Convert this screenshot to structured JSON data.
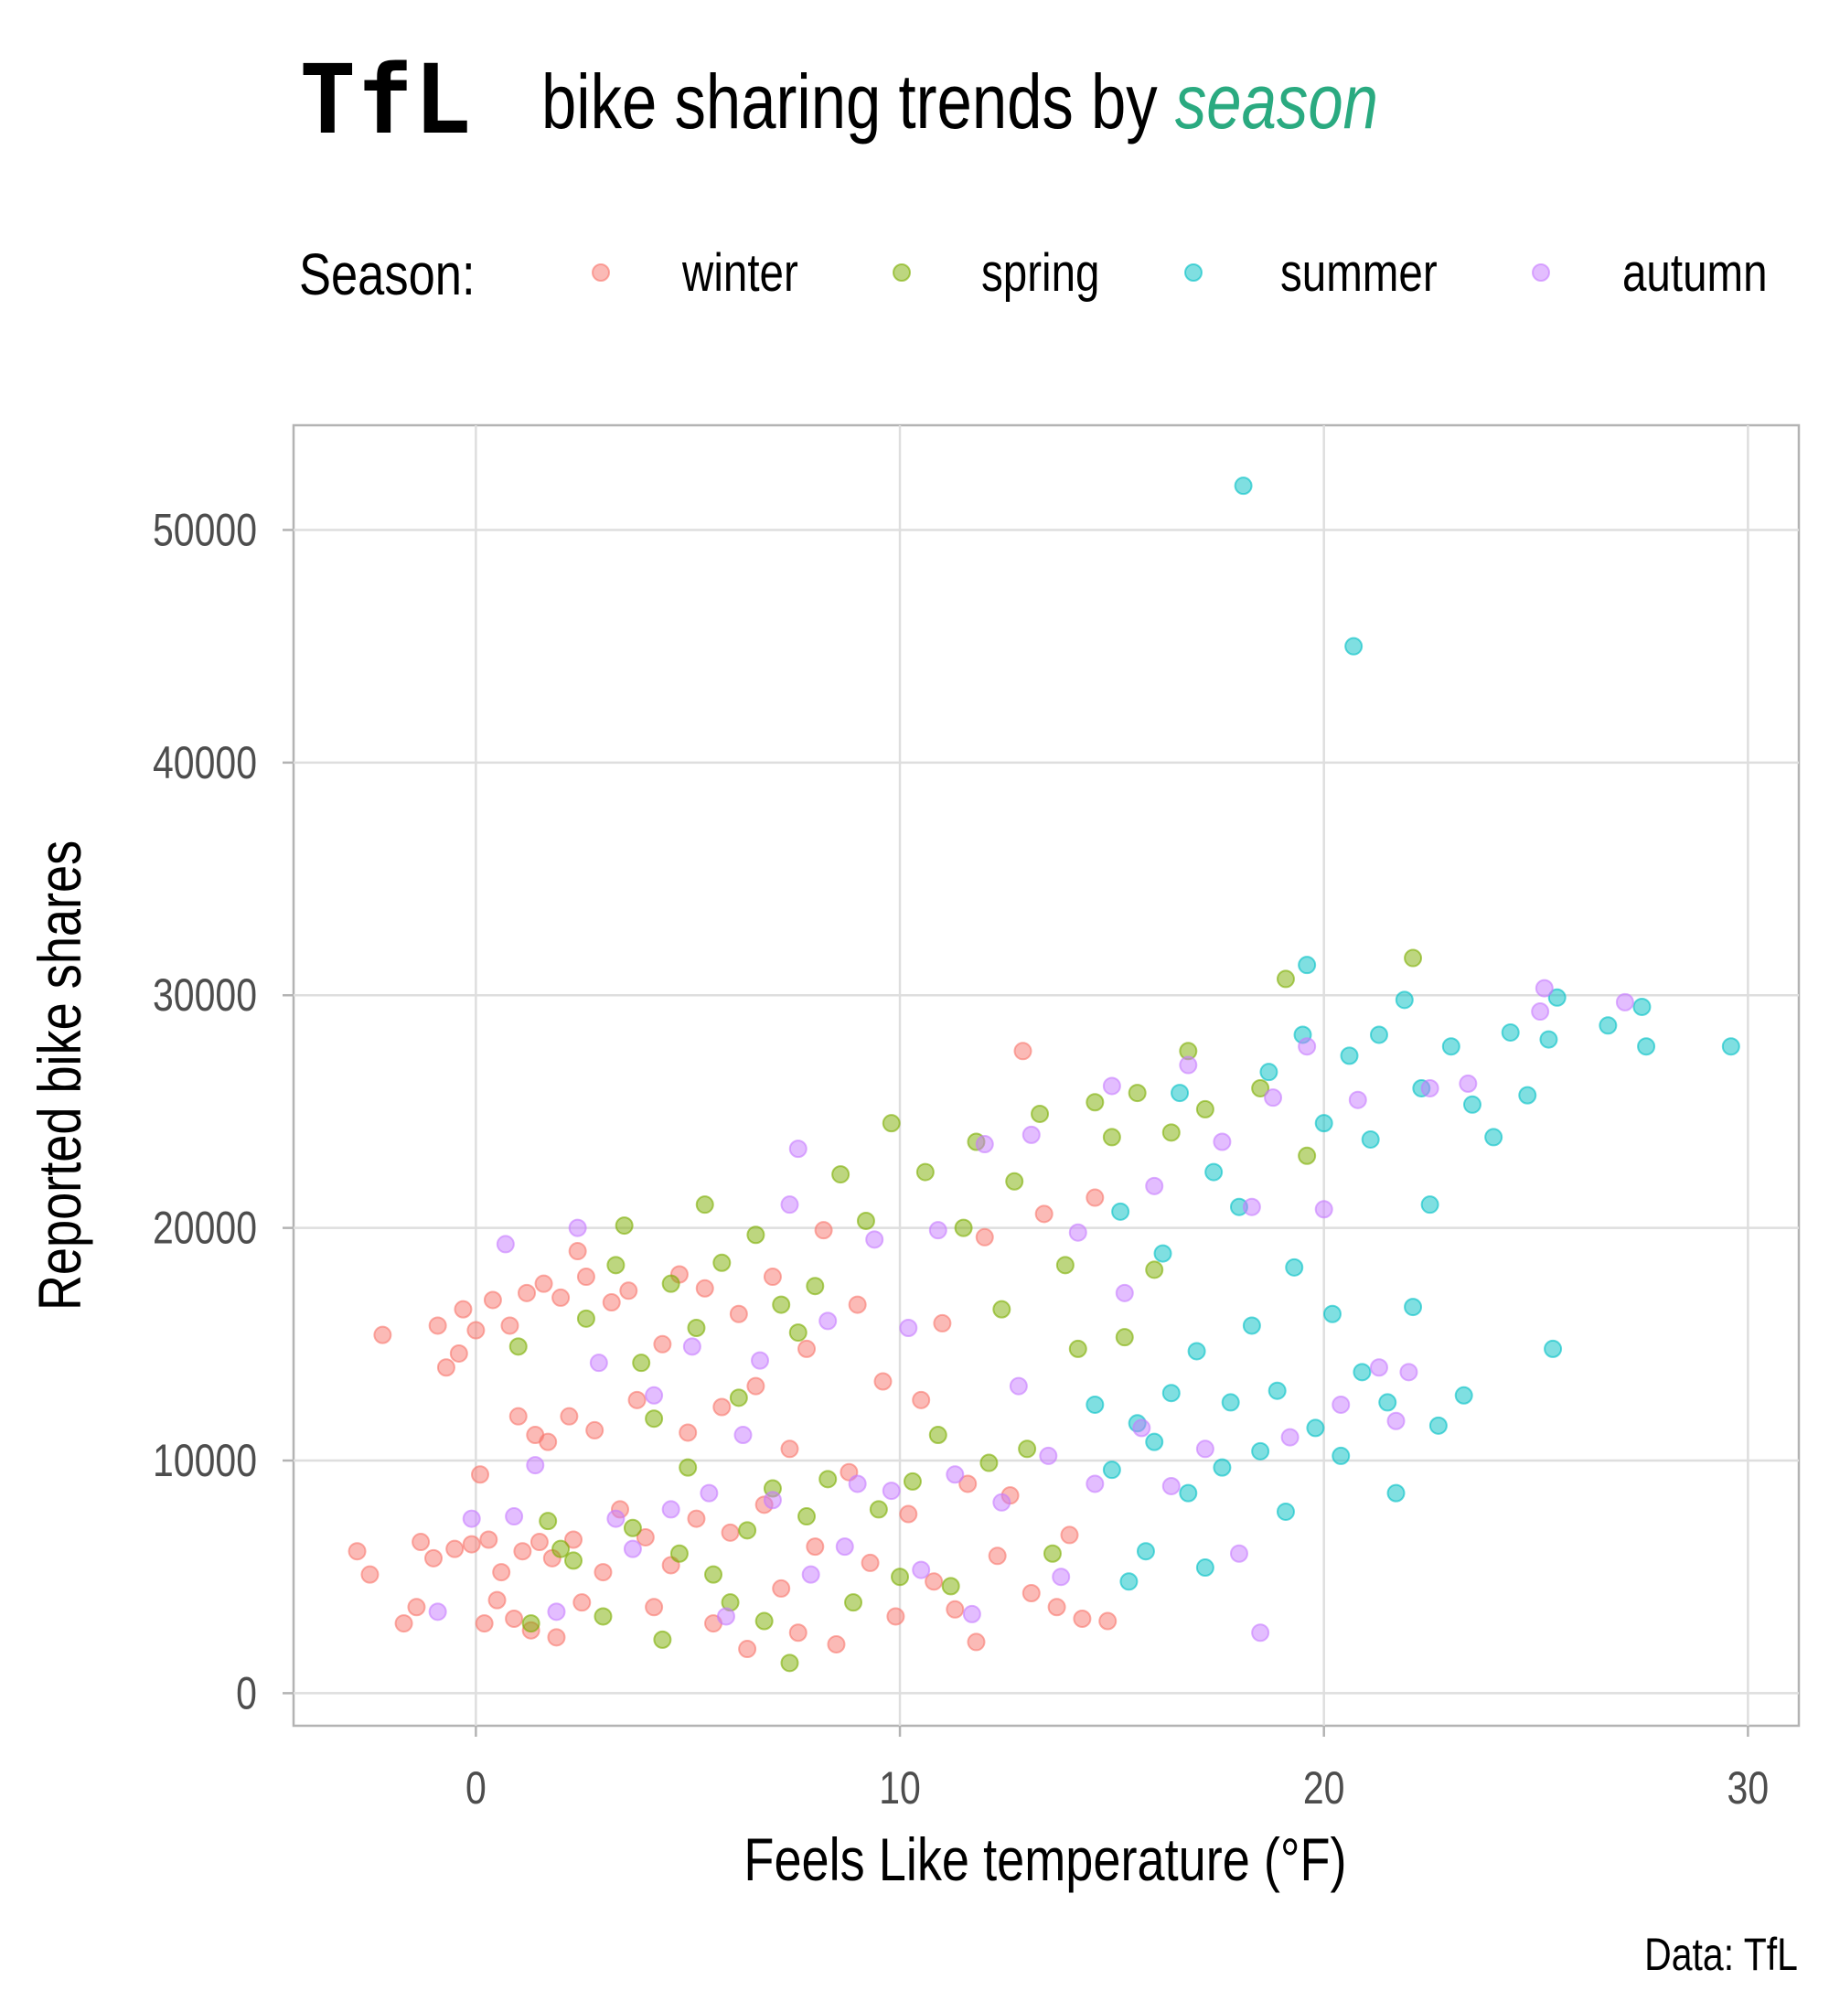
{
  "chart_data": {
    "type": "scatter",
    "title_logo": "TfL",
    "title": "bike sharing trends by",
    "title_highlight": "season",
    "title_highlight_color": "#2AAA80",
    "legend": {
      "title": "Season:",
      "position": "top-left"
    },
    "xlabel": "Feels Like temperature (°F)",
    "ylabel": "Reported bike shares",
    "caption": "Data: TfL",
    "xlim": [
      -4.3,
      31.2
    ],
    "ylim": [
      -1400,
      54500
    ],
    "xticks": [
      0,
      10,
      20,
      30
    ],
    "yticks": [
      0,
      10000,
      20000,
      30000,
      40000,
      50000
    ],
    "grid": true,
    "series": [
      {
        "name": "winter",
        "color": "#F8766D",
        "points": [
          [
            -2.8,
            6100
          ],
          [
            -2.5,
            5100
          ],
          [
            -2.2,
            15400
          ],
          [
            -1.7,
            3000
          ],
          [
            -1.4,
            3700
          ],
          [
            -1.3,
            6500
          ],
          [
            -1,
            5800
          ],
          [
            -0.9,
            15800
          ],
          [
            -0.7,
            14000
          ],
          [
            -0.5,
            6200
          ],
          [
            -0.4,
            14600
          ],
          [
            -0.3,
            16500
          ],
          [
            -0.1,
            6400
          ],
          [
            0,
            15600
          ],
          [
            0.1,
            9400
          ],
          [
            0.2,
            3000
          ],
          [
            0.3,
            6600
          ],
          [
            0.4,
            16900
          ],
          [
            0.5,
            4000
          ],
          [
            0.6,
            5200
          ],
          [
            0.8,
            15800
          ],
          [
            0.9,
            3200
          ],
          [
            1,
            11900
          ],
          [
            1.1,
            6100
          ],
          [
            1.2,
            17200
          ],
          [
            1.3,
            2700
          ],
          [
            1.4,
            11100
          ],
          [
            1.5,
            6500
          ],
          [
            1.6,
            17600
          ],
          [
            1.7,
            10800
          ],
          [
            1.8,
            5800
          ],
          [
            1.9,
            2400
          ],
          [
            2,
            17000
          ],
          [
            2.2,
            11900
          ],
          [
            2.3,
            6600
          ],
          [
            2.4,
            19000
          ],
          [
            2.5,
            3900
          ],
          [
            2.6,
            17900
          ],
          [
            2.8,
            11300
          ],
          [
            3,
            5200
          ],
          [
            3.2,
            16800
          ],
          [
            3.4,
            7900
          ],
          [
            3.6,
            17300
          ],
          [
            3.8,
            12600
          ],
          [
            4,
            6700
          ],
          [
            4.2,
            3700
          ],
          [
            4.4,
            15000
          ],
          [
            4.6,
            5500
          ],
          [
            4.8,
            18000
          ],
          [
            5,
            11200
          ],
          [
            5.2,
            7500
          ],
          [
            5.4,
            17400
          ],
          [
            5.6,
            3000
          ],
          [
            5.8,
            12300
          ],
          [
            6,
            6900
          ],
          [
            6.2,
            16300
          ],
          [
            6.4,
            1900
          ],
          [
            6.6,
            13200
          ],
          [
            6.8,
            8100
          ],
          [
            7,
            17900
          ],
          [
            7.2,
            4500
          ],
          [
            7.4,
            10500
          ],
          [
            7.6,
            2600
          ],
          [
            7.8,
            14800
          ],
          [
            8,
            6300
          ],
          [
            8.2,
            19900
          ],
          [
            8.5,
            2100
          ],
          [
            8.8,
            9500
          ],
          [
            9,
            16700
          ],
          [
            9.3,
            5600
          ],
          [
            9.6,
            13400
          ],
          [
            9.9,
            3300
          ],
          [
            10.2,
            7700
          ],
          [
            10.5,
            12600
          ],
          [
            10.8,
            4800
          ],
          [
            11,
            15900
          ],
          [
            11.3,
            3600
          ],
          [
            11.6,
            9000
          ],
          [
            11.8,
            2200
          ],
          [
            12,
            19600
          ],
          [
            12.3,
            5900
          ],
          [
            12.6,
            8500
          ],
          [
            12.9,
            27600
          ],
          [
            13.1,
            4300
          ],
          [
            13.4,
            20600
          ],
          [
            13.7,
            3700
          ],
          [
            14,
            6800
          ],
          [
            14.3,
            3200
          ],
          [
            14.6,
            21300
          ],
          [
            14.9,
            3100
          ]
        ]
      },
      {
        "name": "spring",
        "color": "#7CAE00",
        "points": [
          [
            1,
            14900
          ],
          [
            1.3,
            3000
          ],
          [
            1.7,
            7400
          ],
          [
            2,
            6200
          ],
          [
            2.3,
            5700
          ],
          [
            2.6,
            16100
          ],
          [
            3,
            3300
          ],
          [
            3.3,
            18400
          ],
          [
            3.5,
            20100
          ],
          [
            3.7,
            7100
          ],
          [
            3.9,
            14200
          ],
          [
            4.2,
            11800
          ],
          [
            4.4,
            2300
          ],
          [
            4.6,
            17600
          ],
          [
            4.8,
            6000
          ],
          [
            5,
            9700
          ],
          [
            5.2,
            15700
          ],
          [
            5.4,
            21000
          ],
          [
            5.6,
            5100
          ],
          [
            5.8,
            18500
          ],
          [
            6,
            3900
          ],
          [
            6.2,
            12700
          ],
          [
            6.4,
            7000
          ],
          [
            6.6,
            19700
          ],
          [
            6.8,
            3100
          ],
          [
            7,
            8800
          ],
          [
            7.2,
            16700
          ],
          [
            7.4,
            1300
          ],
          [
            7.6,
            15500
          ],
          [
            7.8,
            7600
          ],
          [
            8,
            17500
          ],
          [
            8.3,
            9200
          ],
          [
            8.6,
            22300
          ],
          [
            8.9,
            3900
          ],
          [
            9.2,
            20300
          ],
          [
            9.5,
            7900
          ],
          [
            9.8,
            24500
          ],
          [
            10,
            5000
          ],
          [
            10.3,
            9100
          ],
          [
            10.6,
            22400
          ],
          [
            10.9,
            11100
          ],
          [
            11.2,
            4600
          ],
          [
            11.5,
            20000
          ],
          [
            11.8,
            23700
          ],
          [
            12.1,
            9900
          ],
          [
            12.4,
            16500
          ],
          [
            12.7,
            22000
          ],
          [
            13,
            10500
          ],
          [
            13.3,
            24900
          ],
          [
            13.6,
            6000
          ],
          [
            13.9,
            18400
          ],
          [
            14.2,
            14800
          ],
          [
            14.6,
            25400
          ],
          [
            15,
            23900
          ],
          [
            15.3,
            15300
          ],
          [
            15.6,
            25800
          ],
          [
            16,
            18200
          ],
          [
            16.4,
            24100
          ],
          [
            16.8,
            27600
          ],
          [
            17.2,
            25100
          ],
          [
            18.5,
            26000
          ],
          [
            19.1,
            30700
          ],
          [
            19.6,
            23100
          ],
          [
            22.1,
            31600
          ]
        ]
      },
      {
        "name": "summer",
        "color": "#00BFC4",
        "points": [
          [
            14.6,
            12400
          ],
          [
            15,
            9600
          ],
          [
            15.2,
            20700
          ],
          [
            15.4,
            4800
          ],
          [
            15.6,
            11600
          ],
          [
            15.8,
            6100
          ],
          [
            16,
            10800
          ],
          [
            16.2,
            18900
          ],
          [
            16.4,
            12900
          ],
          [
            16.6,
            25800
          ],
          [
            16.8,
            8600
          ],
          [
            17,
            14700
          ],
          [
            17.2,
            5400
          ],
          [
            17.4,
            22400
          ],
          [
            17.6,
            9700
          ],
          [
            17.8,
            12500
          ],
          [
            18,
            20900
          ],
          [
            18.1,
            51900
          ],
          [
            18.3,
            15800
          ],
          [
            18.5,
            10400
          ],
          [
            18.7,
            26700
          ],
          [
            18.9,
            13000
          ],
          [
            19.1,
            7800
          ],
          [
            19.3,
            18300
          ],
          [
            19.5,
            28300
          ],
          [
            19.6,
            31300
          ],
          [
            19.8,
            11400
          ],
          [
            20,
            24500
          ],
          [
            20.2,
            16300
          ],
          [
            20.4,
            10200
          ],
          [
            20.6,
            27400
          ],
          [
            20.7,
            45000
          ],
          [
            20.9,
            13800
          ],
          [
            21.1,
            23800
          ],
          [
            21.3,
            28300
          ],
          [
            21.5,
            12500
          ],
          [
            21.7,
            8600
          ],
          [
            21.9,
            29800
          ],
          [
            22.1,
            16600
          ],
          [
            22.3,
            26000
          ],
          [
            22.5,
            21000
          ],
          [
            22.7,
            11500
          ],
          [
            23,
            27800
          ],
          [
            23.3,
            12800
          ],
          [
            23.5,
            25300
          ],
          [
            24,
            23900
          ],
          [
            24.4,
            28400
          ],
          [
            24.8,
            25700
          ],
          [
            25.3,
            28100
          ],
          [
            25.4,
            14800
          ],
          [
            25.5,
            29900
          ],
          [
            26.7,
            28700
          ],
          [
            27.5,
            29500
          ],
          [
            27.6,
            27800
          ],
          [
            29.6,
            27800
          ]
        ]
      },
      {
        "name": "autumn",
        "color": "#C77CFF",
        "points": [
          [
            -0.9,
            3500
          ],
          [
            -0.1,
            7500
          ],
          [
            0.7,
            19300
          ],
          [
            0.9,
            7600
          ],
          [
            1.4,
            9800
          ],
          [
            1.9,
            3500
          ],
          [
            2.4,
            20000
          ],
          [
            2.9,
            14200
          ],
          [
            3.3,
            7500
          ],
          [
            3.7,
            6200
          ],
          [
            4.2,
            12800
          ],
          [
            4.6,
            7900
          ],
          [
            5.1,
            14900
          ],
          [
            5.5,
            8600
          ],
          [
            5.9,
            3300
          ],
          [
            6.3,
            11100
          ],
          [
            6.7,
            14300
          ],
          [
            7,
            8300
          ],
          [
            7.4,
            21000
          ],
          [
            7.6,
            23400
          ],
          [
            7.9,
            5100
          ],
          [
            8.3,
            16000
          ],
          [
            8.7,
            6300
          ],
          [
            9,
            9000
          ],
          [
            9.4,
            19500
          ],
          [
            9.8,
            8700
          ],
          [
            10.2,
            15700
          ],
          [
            10.5,
            5300
          ],
          [
            10.9,
            19900
          ],
          [
            11.3,
            9400
          ],
          [
            11.7,
            3400
          ],
          [
            12,
            23600
          ],
          [
            12.4,
            8200
          ],
          [
            12.8,
            13200
          ],
          [
            13.1,
            24000
          ],
          [
            13.5,
            10200
          ],
          [
            13.8,
            5000
          ],
          [
            14.2,
            19800
          ],
          [
            14.6,
            9000
          ],
          [
            15,
            26100
          ],
          [
            15.3,
            17200
          ],
          [
            15.7,
            11400
          ],
          [
            16,
            21800
          ],
          [
            16.4,
            8900
          ],
          [
            16.8,
            27000
          ],
          [
            17.2,
            10500
          ],
          [
            17.6,
            23700
          ],
          [
            18,
            6000
          ],
          [
            18.3,
            20900
          ],
          [
            18.5,
            2600
          ],
          [
            18.8,
            25600
          ],
          [
            19.2,
            11000
          ],
          [
            19.6,
            27800
          ],
          [
            20,
            20800
          ],
          [
            20.4,
            12400
          ],
          [
            20.8,
            25500
          ],
          [
            21.3,
            14000
          ],
          [
            21.7,
            11700
          ],
          [
            22,
            13800
          ],
          [
            22.5,
            26000
          ],
          [
            23.4,
            26200
          ],
          [
            25.2,
            30300
          ],
          [
            25.1,
            29300
          ],
          [
            27.1,
            29700
          ]
        ]
      }
    ]
  }
}
